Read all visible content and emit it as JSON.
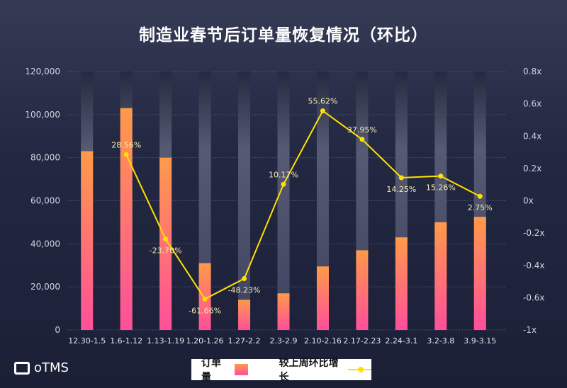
{
  "chart_data": {
    "type": "bar+line",
    "title": "制造业春节后订单量恢复情况（环比）",
    "categories": [
      "12.30-1.5",
      "1.6-1.12",
      "1.13-1.19",
      "1.20-1.26",
      "1.27-2.2",
      "2.3-2.9",
      "2.10-2.16",
      "2.17-2.23",
      "2.24-3.1",
      "3.2-3.8",
      "3.9-3.15"
    ],
    "series": [
      {
        "name": "订单量",
        "type": "bar",
        "axis": "left",
        "values": [
          83000,
          103000,
          80000,
          31000,
          14000,
          17000,
          29500,
          37000,
          43000,
          50000,
          52500
        ]
      },
      {
        "name": "较上周环比增长",
        "type": "line",
        "axis": "right",
        "values": [
          null,
          28.56,
          -23.7,
          -61.66,
          -48.23,
          10.17,
          55.62,
          37.95,
          14.25,
          15.26,
          2.75
        ],
        "labels": [
          "",
          "28.56%",
          "-23.70%",
          "-61.66%",
          "-48.23%",
          "10.17%",
          "55.62%",
          "37.95%",
          "14.25%",
          "15.26%",
          "2.75%"
        ]
      }
    ],
    "left_axis": {
      "ticks": [
        "0",
        "20,000",
        "40,000",
        "60,000",
        "80,000",
        "100,000",
        "120,000"
      ],
      "values": [
        0,
        20000,
        40000,
        60000,
        80000,
        100000,
        120000
      ],
      "ylim": [
        0,
        120000
      ]
    },
    "right_axis": {
      "ticks": [
        "-1x",
        "-0.6x",
        "-0.4x",
        "-0.2x",
        "0x",
        "0.2x",
        "0.4x",
        "0.6x",
        "0.8x"
      ],
      "values": [
        -1,
        -0.6,
        -0.4,
        -0.2,
        0,
        0.2,
        0.4,
        0.6,
        0.8
      ]
    },
    "grid": true,
    "legend_placement": "bottom",
    "colors": {
      "bar_top": "#ff9a4a",
      "bar_bottom": "#ff4f9a",
      "line": "#ffe100",
      "label": "#f3eab0"
    }
  },
  "legend": {
    "bar": "订单量",
    "line": "较上周环比增长"
  },
  "logo": "oTMS"
}
